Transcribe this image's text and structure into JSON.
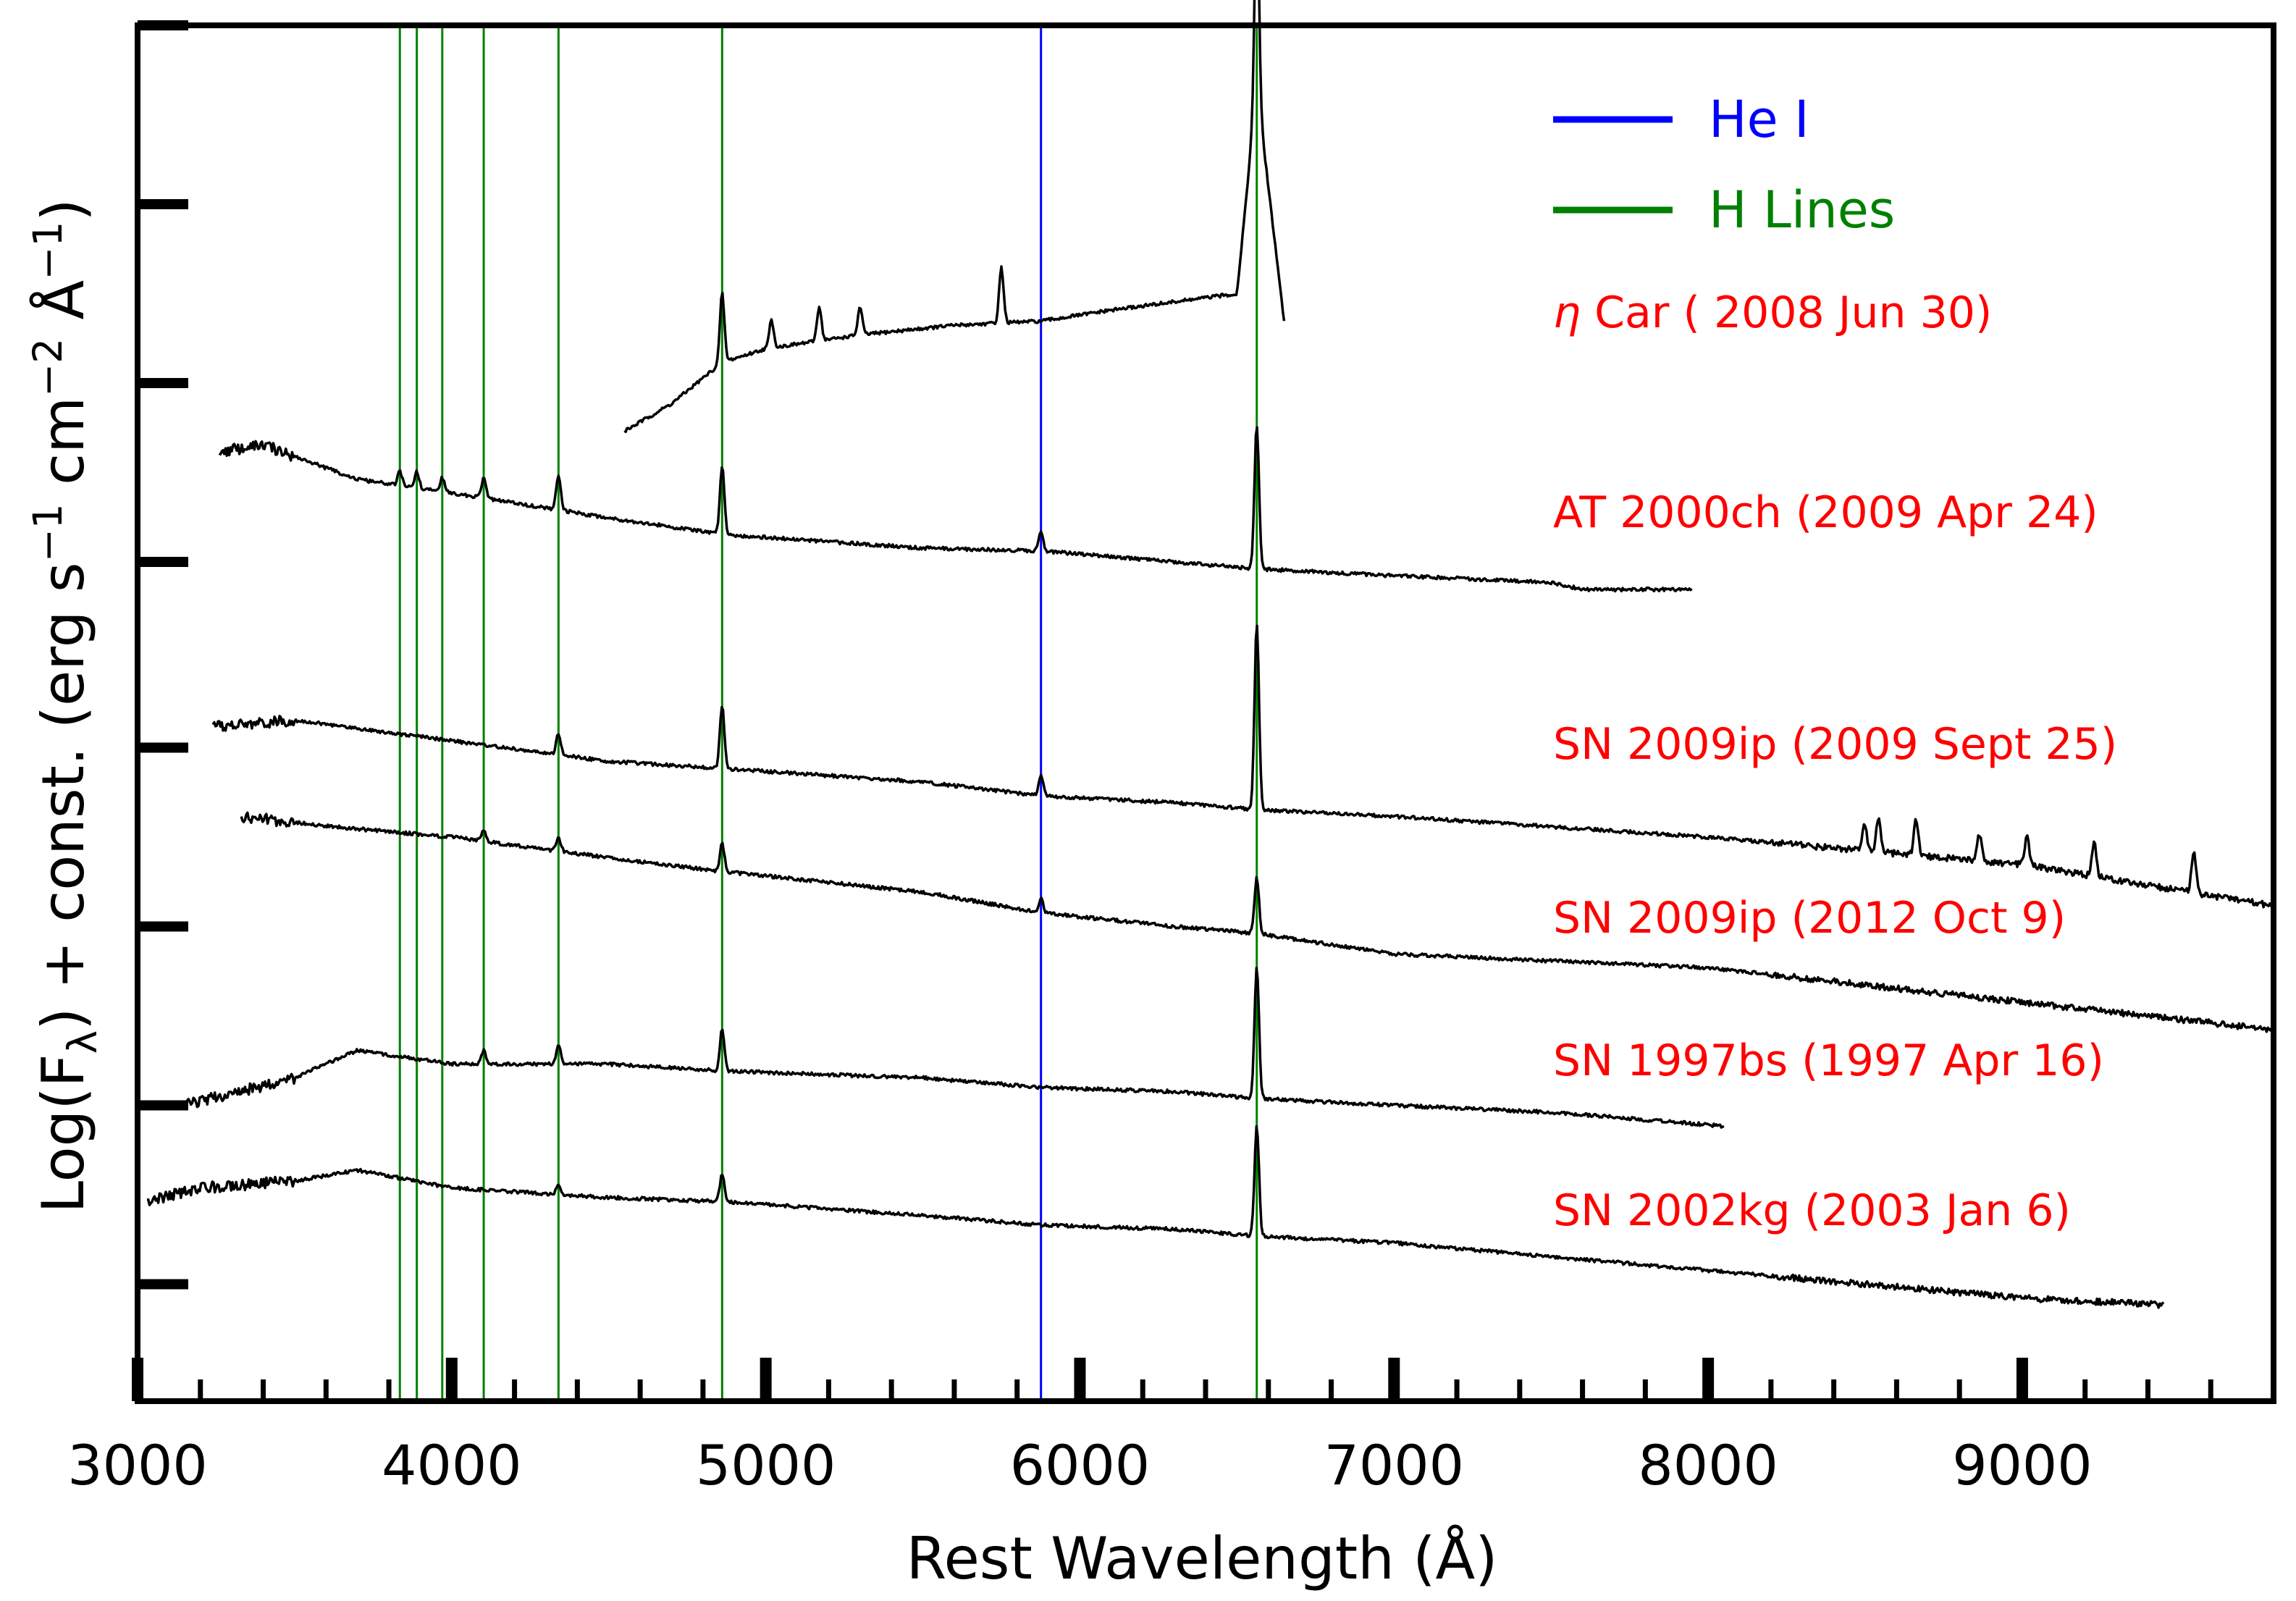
{
  "chart_data": {
    "type": "line",
    "title": "",
    "xlabel": "Rest Wavelength (Å)",
    "ylabel": "Log(Fλ) + const. (erg s−1 cm−2 Å−1)",
    "ylabel_parts": {
      "main": "Log(F",
      "sub_lambda": "λ",
      "mid": ") + const. (erg s",
      "sup1": "−1",
      "mid2": " cm",
      "sup2": "−2",
      "mid3": " Å",
      "sup3": "−1",
      "end": ")"
    },
    "xlim": [
      3000,
      9800
    ],
    "ylim": [
      0,
      1
    ],
    "x_ticks": [
      3000,
      4000,
      5000,
      6000,
      7000,
      8000,
      9000
    ],
    "x_tick_labels": [
      "3000",
      "4000",
      "5000",
      "6000",
      "7000",
      "8000",
      "9000"
    ],
    "grid": false,
    "legend_position": "top-right",
    "legend": [
      {
        "name": "He I",
        "color": "#0000ff"
      },
      {
        "name": "H Lines",
        "color": "#008000"
      }
    ],
    "reference_lines": [
      {
        "group": "H Lines",
        "x": 3835,
        "color": "#008000"
      },
      {
        "group": "H Lines",
        "x": 3889,
        "color": "#008000"
      },
      {
        "group": "H Lines",
        "x": 3970,
        "color": "#008000"
      },
      {
        "group": "H Lines",
        "x": 4102,
        "color": "#008000"
      },
      {
        "group": "H Lines",
        "x": 4340,
        "color": "#008000"
      },
      {
        "group": "H Lines",
        "x": 4861,
        "color": "#008000"
      },
      {
        "group": "H Lines",
        "x": 6563,
        "color": "#008000"
      },
      {
        "group": "He I",
        "x": 5876,
        "color": "#0000ff"
      }
    ],
    "series": [
      {
        "name": "η Car ( 2008 Jun 30)",
        "label_prefix": "η",
        "label_rest": " Car ( 2008 Jun 30)",
        "color": "#000000",
        "label_color": "#ff0000",
        "x": [
          4550,
          4700,
          4861,
          5000,
          5300,
          5600,
          5876,
          6100,
          6400,
          6500,
          6563,
          6650
        ],
        "y": [
          0.705,
          0.725,
          0.755,
          0.765,
          0.775,
          0.782,
          0.785,
          0.793,
          0.802,
          0.805,
          0.955,
          0.785
        ],
        "peaks": [
          [
            4861,
            0.05
          ],
          [
            5018,
            0.02
          ],
          [
            5170,
            0.025
          ],
          [
            5300,
            0.02
          ],
          [
            5750,
            0.04
          ],
          [
            6563,
            0.14
          ]
        ]
      },
      {
        "name": "AT 2000ch (2009 Apr 24)",
        "color": "#000000",
        "label_color": "#ff0000",
        "x": [
          3260,
          3400,
          3700,
          4000,
          4500,
          4861,
          5500,
          5876,
          6300,
          6563,
          7000,
          7500,
          7600,
          7950
        ],
        "y": [
          0.69,
          0.695,
          0.67,
          0.66,
          0.642,
          0.63,
          0.62,
          0.618,
          0.61,
          0.605,
          0.6,
          0.595,
          0.59,
          0.59
        ],
        "peaks": [
          [
            3835,
            0.01
          ],
          [
            3889,
            0.012
          ],
          [
            3970,
            0.01
          ],
          [
            4102,
            0.015
          ],
          [
            4340,
            0.025
          ],
          [
            4861,
            0.05
          ],
          [
            5876,
            0.015
          ],
          [
            6563,
            0.105
          ]
        ]
      },
      {
        "name": "SN 2009ip (2009 Sept 25)",
        "color": "#000000",
        "label_color": "#ff0000",
        "x": [
          3240,
          3500,
          4000,
          4500,
          4861,
          5500,
          5876,
          6300,
          6563,
          7000,
          8000,
          9000,
          9800
        ],
        "y": [
          0.49,
          0.495,
          0.48,
          0.465,
          0.46,
          0.45,
          0.44,
          0.435,
          0.43,
          0.425,
          0.41,
          0.39,
          0.36
        ],
        "peaks": [
          [
            4340,
            0.015
          ],
          [
            4861,
            0.045
          ],
          [
            5876,
            0.015
          ],
          [
            6563,
            0.135
          ],
          [
            8498,
            0.02
          ],
          [
            8542,
            0.025
          ],
          [
            8662,
            0.025
          ],
          [
            8863,
            0.02
          ],
          [
            9015,
            0.02
          ],
          [
            9229,
            0.025
          ],
          [
            9546,
            0.03
          ]
        ]
      },
      {
        "name": "SN 2009ip (2012 Oct 9)",
        "color": "#000000",
        "label_color": "#ff0000",
        "x": [
          3330,
          3600,
          4000,
          4500,
          4861,
          5500,
          5876,
          6300,
          6563,
          7000,
          8000,
          9000,
          9800
        ],
        "y": [
          0.425,
          0.418,
          0.41,
          0.395,
          0.385,
          0.37,
          0.355,
          0.345,
          0.34,
          0.325,
          0.315,
          0.29,
          0.27
        ],
        "peaks": [
          [
            4102,
            0.008
          ],
          [
            4340,
            0.01
          ],
          [
            4861,
            0.02
          ],
          [
            5876,
            0.01
          ],
          [
            6563,
            0.04
          ]
        ]
      },
      {
        "name": "SN 1997bs (1997 Apr 16)",
        "color": "#000000",
        "label_color": "#ff0000",
        "x": [
          3150,
          3500,
          3700,
          4000,
          4500,
          4861,
          5500,
          5876,
          6300,
          6563,
          7000,
          7500,
          8050
        ],
        "y": [
          0.215,
          0.235,
          0.255,
          0.245,
          0.245,
          0.24,
          0.235,
          0.228,
          0.225,
          0.22,
          0.215,
          0.21,
          0.2
        ],
        "peaks": [
          [
            4102,
            0.01
          ],
          [
            4340,
            0.015
          ],
          [
            4861,
            0.03
          ],
          [
            6563,
            0.095
          ]
        ]
      },
      {
        "name": "SN 2002kg (2003 Jan 6)",
        "color": "#000000",
        "label_color": "#ff0000",
        "x": [
          3030,
          3200,
          3500,
          3700,
          4000,
          4500,
          4861,
          5500,
          5876,
          6300,
          6563,
          7000,
          7500,
          8000,
          8500,
          9000,
          9450
        ],
        "y": [
          0.145,
          0.155,
          0.16,
          0.168,
          0.155,
          0.148,
          0.145,
          0.135,
          0.128,
          0.125,
          0.12,
          0.115,
          0.105,
          0.095,
          0.085,
          0.075,
          0.07
        ],
        "peaks": [
          [
            4340,
            0.008
          ],
          [
            4861,
            0.02
          ],
          [
            6563,
            0.08
          ]
        ]
      }
    ]
  }
}
